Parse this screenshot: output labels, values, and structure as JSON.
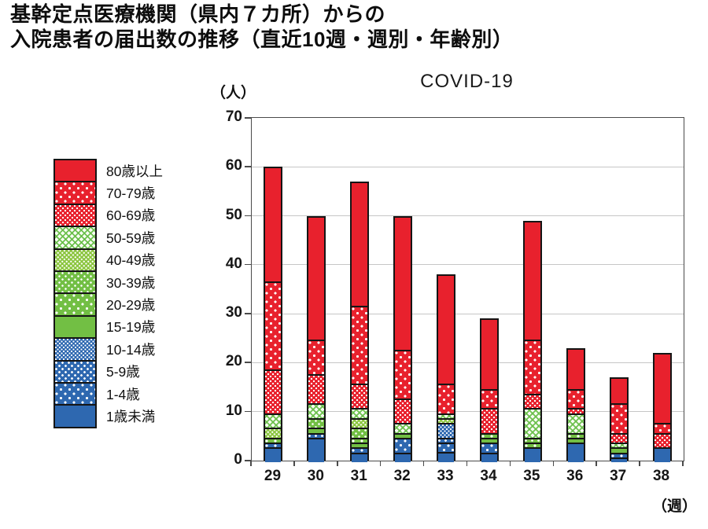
{
  "header": {
    "title_line1": "基幹定点医療機関（県内７カ所）からの",
    "title_line2": "入院患者の届出数の推移（直近10週・週別・年齢別）"
  },
  "colors": {
    "red": "#e8212d",
    "green": "#72bf44",
    "blue": "#2e68b0",
    "bar_outline": "#151515",
    "gridline": "#c6c6c6",
    "axis": "#4a4a4a"
  },
  "chart_data": {
    "type": "bar",
    "stacked": true,
    "title": "COVID-19",
    "y_axis_unit_label": "（人）",
    "x_axis_unit_label": "（週）",
    "xlabel": "週",
    "ylabel": "人",
    "ylim": [
      0,
      70
    ],
    "y_ticks": [
      0,
      10,
      20,
      30,
      40,
      50,
      60,
      70
    ],
    "grid": true,
    "legend_position": "left",
    "categories": [
      "29",
      "30",
      "31",
      "32",
      "33",
      "34",
      "35",
      "36",
      "37",
      "38"
    ],
    "totals": [
      60,
      50,
      57,
      50,
      38,
      29,
      49,
      23,
      17,
      22
    ],
    "series": [
      {
        "name": "80歳以上",
        "pattern": "p-red-solid",
        "values": [
          23,
          25,
          25,
          27,
          22,
          14,
          24,
          8,
          5,
          14
        ]
      },
      {
        "name": "70-79歳",
        "pattern": "p-red-dot-sparse",
        "values": [
          18,
          7,
          16,
          10,
          6,
          4,
          11,
          4,
          6,
          2
        ]
      },
      {
        "name": "60-69歳",
        "pattern": "p-red-dot-dense",
        "values": [
          9,
          6,
          5,
          5,
          0,
          5,
          3,
          1,
          2,
          3
        ]
      },
      {
        "name": "50-59歳",
        "pattern": "p-green-cross",
        "values": [
          3,
          3,
          2,
          2,
          1,
          0,
          6,
          4,
          1,
          0
        ]
      },
      {
        "name": "40-49歳",
        "pattern": "p-green-dot-dense",
        "values": [
          2,
          0,
          2,
          0,
          1,
          0,
          0,
          0,
          0,
          0
        ]
      },
      {
        "name": "30-39歳",
        "pattern": "p-green-dot-med",
        "values": [
          0,
          2,
          2,
          0,
          0,
          0,
          1,
          0,
          0,
          0
        ]
      },
      {
        "name": "20-29歳",
        "pattern": "p-green-dot-sparse",
        "values": [
          1,
          0,
          1,
          0,
          0,
          1,
          1,
          1,
          0,
          0
        ]
      },
      {
        "name": "15-19歳",
        "pattern": "p-green-solid",
        "values": [
          0,
          1,
          1,
          1,
          0,
          1,
          0,
          1,
          1,
          0
        ]
      },
      {
        "name": "10-14歳",
        "pattern": "p-blue-dot-dense",
        "values": [
          0,
          0,
          0,
          0,
          3,
          0,
          0,
          0,
          0,
          0
        ]
      },
      {
        "name": "5-9歳",
        "pattern": "p-blue-dot-med",
        "values": [
          0,
          1,
          0,
          0,
          1,
          0,
          0,
          0,
          0,
          0
        ]
      },
      {
        "name": "1-4歳",
        "pattern": "p-blue-dot-sparse",
        "values": [
          1,
          0,
          1,
          3,
          2,
          2,
          0,
          0,
          1,
          0
        ]
      },
      {
        "name": "1歳未満",
        "pattern": "p-blue-solid",
        "values": [
          3,
          5,
          2,
          2,
          2,
          2,
          3,
          4,
          1,
          3
        ]
      }
    ]
  }
}
